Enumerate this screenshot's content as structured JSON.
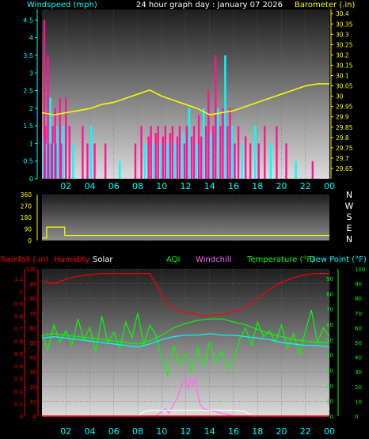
{
  "header": {
    "title": "24 hour graph day : January 07 2026",
    "left_label": "Windspeed (mph)",
    "right_label": "Barometer (.in)"
  },
  "colors": {
    "cyan": "#00ffff",
    "magenta": "#ff1493",
    "yellow": "#ffff00",
    "red": "#ff0000",
    "green": "#00ff00",
    "violet": "#ff66ff",
    "white": "#ffffff"
  },
  "x_ticks": [
    "02",
    "04",
    "06",
    "08",
    "10",
    "12",
    "14",
    "16",
    "18",
    "20",
    "22",
    "00"
  ],
  "wind_panel": {
    "left_ticks": [
      "0",
      "0.5",
      "1",
      "1.5",
      "2",
      "2.5",
      "3",
      "3.5",
      "4",
      "4.5"
    ],
    "right_ticks": [
      "29.65",
      "29.7",
      "29.75",
      "29.8",
      "29.85",
      "29.9",
      "29.95",
      "30",
      "30.05",
      "30.1",
      "30.15",
      "30.2",
      "30.25",
      "30.3",
      "30.35",
      "30.4"
    ],
    "ylim_left": [
      0,
      4.8
    ],
    "ylim_right": [
      29.6,
      30.42
    ]
  },
  "dir_panel": {
    "left_ticks": [
      "0",
      "90",
      "180",
      "270",
      "360"
    ],
    "compass": [
      "N",
      "W",
      "S",
      "E",
      "N"
    ],
    "ylim": [
      0,
      360
    ]
  },
  "bottom_panel": {
    "legend": {
      "rainfall": "Rainfall (.in)",
      "humidity": "Humidity",
      "solar": "Solar",
      "aqi": "AQI",
      "windchill": "Windchill",
      "temperature": "Temperature (°F)",
      "dewpoint": "Dew Point (°F)"
    },
    "rain_ticks": [
      "0",
      "0.1",
      "0.2",
      "0.3",
      "0.4",
      "0.5",
      "0.6",
      "0.7",
      "0.8",
      "0.9",
      "1",
      "1.1"
    ],
    "percent_ticks": [
      "0",
      "10",
      "20",
      "30",
      "40",
      "50",
      "60",
      "70",
      "80",
      "90",
      "100"
    ],
    "temp_left_ticks": [
      "0",
      "10",
      "20",
      "30",
      "40",
      "50",
      "60",
      "70",
      "80",
      "90"
    ],
    "temp_right_ticks": [
      "0",
      "10",
      "20",
      "30",
      "40",
      "50",
      "60",
      "70",
      "80",
      "90",
      "100"
    ],
    "ylim": [
      0,
      100
    ]
  },
  "chart_data": [
    {
      "type": "line",
      "x_unit": "hour",
      "series": [
        {
          "name": "Barometer (.in)",
          "axis": "right",
          "x": [
            0,
            1,
            2,
            3,
            4,
            5,
            6,
            7,
            8,
            9,
            10,
            11,
            12,
            13,
            14,
            15,
            16,
            17,
            18,
            19,
            20,
            21,
            22,
            23,
            24
          ],
          "values": [
            29.92,
            29.91,
            29.92,
            29.93,
            29.94,
            29.96,
            29.97,
            29.99,
            30.01,
            30.03,
            30.0,
            29.98,
            29.96,
            29.94,
            29.91,
            29.92,
            29.93,
            29.95,
            29.97,
            29.99,
            30.01,
            30.03,
            30.05,
            30.06,
            30.06
          ]
        },
        {
          "name": "Windspeed (mph)",
          "axis": "left",
          "x": [
            0.1,
            0.2,
            0.3,
            0.4,
            0.5,
            0.6,
            0.7,
            0.8,
            0.9,
            1.0,
            1.1,
            1.2,
            1.3,
            1.5,
            1.6,
            1.8,
            2.0,
            2.3,
            2.6,
            3.4,
            3.8,
            4.1,
            4.4,
            5.3,
            6.5,
            7.8,
            8.3,
            8.6,
            8.9,
            9.1,
            9.3,
            9.5,
            9.7,
            9.9,
            10.1,
            10.3,
            10.5,
            10.7,
            10.9,
            11.1,
            11.3,
            11.5,
            11.7,
            11.9,
            12.1,
            12.3,
            12.5,
            12.7,
            12.9,
            13.1,
            13.3,
            13.5,
            13.7,
            13.9,
            14.1,
            14.3,
            14.5,
            14.7,
            14.9,
            15.1,
            15.3,
            15.5,
            15.7,
            15.9,
            16.1,
            16.4,
            16.7,
            17.0,
            17.4,
            17.8,
            18.1,
            18.6,
            19.1,
            19.6,
            20.4,
            21.2,
            22.6
          ],
          "values": [
            1.2,
            4.5,
            1.5,
            1.0,
            3.5,
            1.0,
            2.3,
            1.0,
            1.5,
            1.0,
            2.0,
            1.0,
            1.5,
            2.3,
            1.0,
            1.5,
            2.3,
            1.5,
            1.0,
            1.5,
            1.0,
            1.5,
            1.0,
            1.0,
            0.5,
            1.0,
            1.5,
            1.0,
            1.2,
            1.5,
            1.0,
            1.3,
            1.5,
            1.0,
            1.2,
            1.5,
            1.0,
            1.3,
            1.5,
            1.0,
            1.2,
            1.5,
            1.3,
            1.0,
            1.5,
            2.0,
            1.2,
            1.5,
            1.0,
            1.8,
            1.2,
            2.0,
            1.5,
            2.5,
            1.3,
            1.5,
            3.5,
            2.0,
            1.5,
            2.0,
            3.5,
            1.5,
            2.0,
            1.5,
            1.0,
            1.5,
            1.0,
            1.2,
            1.0,
            1.5,
            1.0,
            1.5,
            1.0,
            1.5,
            1.0,
            0.5,
            0.5
          ]
        }
      ],
      "xlim": [
        0,
        24
      ]
    },
    {
      "type": "line",
      "series": [
        {
          "name": "Wind direction",
          "x": [
            0,
            0.2,
            0.4,
            1.7,
            1.9,
            2.3,
            24
          ],
          "values": [
            20,
            20,
            105,
            105,
            40,
            40,
            40
          ]
        }
      ],
      "xlim": [
        0,
        24
      ],
      "ylim": [
        0,
        360
      ]
    },
    {
      "type": "line",
      "x_unit": "hour",
      "series": [
        {
          "name": "Humidity",
          "x": [
            0,
            1,
            2,
            3,
            4,
            5,
            6,
            7,
            8,
            8.5,
            9,
            9.5,
            10,
            10.5,
            11,
            11.5,
            12,
            12.5,
            13,
            13.5,
            14,
            14.5,
            15,
            15.5,
            16,
            16.5,
            17,
            17.5,
            18,
            19,
            20,
            21,
            22,
            23,
            24
          ],
          "values": [
            92,
            90,
            93,
            95,
            96,
            97,
            97,
            97,
            97,
            97,
            97,
            90,
            82,
            76,
            73,
            71,
            70,
            70,
            69,
            68,
            68,
            69,
            69,
            70,
            71,
            72,
            74,
            77,
            80,
            86,
            91,
            94,
            96,
            97,
            97
          ]
        },
        {
          "name": "Temperature (°F)",
          "x": [
            0,
            1,
            2,
            3,
            4,
            5,
            6,
            7,
            8,
            9,
            10,
            11,
            12,
            13,
            14,
            15,
            16,
            17,
            18,
            19,
            20,
            21,
            22,
            23,
            24
          ],
          "values": [
            55,
            56,
            55,
            54,
            53,
            52,
            51,
            50,
            49,
            51,
            55,
            60,
            63,
            65,
            66,
            66,
            64,
            62,
            59,
            56,
            54,
            52,
            51,
            50,
            50
          ]
        },
        {
          "name": "Dew Point (°F)",
          "x": [
            0,
            1,
            2,
            3,
            4,
            5,
            6,
            7,
            8,
            9,
            10,
            11,
            12,
            13,
            14,
            15,
            16,
            17,
            18,
            19,
            20,
            21,
            22,
            23,
            24
          ],
          "values": [
            53,
            54,
            53,
            52,
            51,
            50,
            49,
            48,
            47,
            49,
            52,
            54,
            55,
            55,
            56,
            55,
            55,
            54,
            53,
            52,
            50,
            49,
            48,
            48,
            47
          ]
        },
        {
          "name": "AQI",
          "x": [
            0,
            0.5,
            1,
            1.5,
            2,
            2.5,
            3,
            3.5,
            4,
            4.5,
            5,
            5.5,
            6,
            6.5,
            7,
            7.5,
            8,
            8.5,
            9,
            9.5,
            10,
            10.5,
            11,
            11.5,
            12,
            12.5,
            13,
            13.5,
            14,
            14.5,
            15,
            15.5,
            16,
            16.5,
            17,
            17.5,
            18,
            18.5,
            19,
            19.5,
            20,
            20.5,
            21,
            21.5,
            22,
            22.5,
            23,
            23.5,
            24
          ],
          "values": [
            55,
            45,
            62,
            50,
            58,
            48,
            66,
            52,
            60,
            44,
            68,
            50,
            57,
            46,
            64,
            53,
            70,
            48,
            62,
            55,
            40,
            28,
            48,
            35,
            42,
            30,
            46,
            34,
            50,
            36,
            44,
            32,
            38,
            52,
            60,
            48,
            64,
            54,
            58,
            50,
            62,
            46,
            56,
            42,
            58,
            72,
            50,
            60,
            54
          ]
        },
        {
          "name": "Solar",
          "x": [
            0,
            8,
            8.5,
            9,
            10,
            11,
            12,
            13,
            14,
            15,
            16,
            17,
            17.5,
            24
          ],
          "values": [
            0,
            0,
            3,
            4,
            4,
            4,
            4,
            4,
            4,
            4,
            4,
            3,
            0,
            0
          ]
        },
        {
          "name": "Windchill",
          "x": [
            0,
            9.5,
            10,
            10.3,
            10.6,
            11,
            11.3,
            11.6,
            12,
            12.2,
            12.4,
            12.6,
            12.8,
            13,
            13.2,
            13.5,
            14,
            14.5,
            15,
            15.5,
            16,
            24
          ],
          "values": [
            0,
            0,
            3,
            5,
            2,
            8,
            12,
            20,
            25,
            18,
            26,
            20,
            28,
            15,
            8,
            5,
            4,
            3,
            2,
            1,
            0,
            0
          ]
        },
        {
          "name": "Rainfall (.in)",
          "x": [
            0,
            24
          ],
          "values": [
            0,
            0
          ]
        }
      ],
      "xlim": [
        0,
        24
      ],
      "ylim": [
        0,
        100
      ]
    }
  ]
}
